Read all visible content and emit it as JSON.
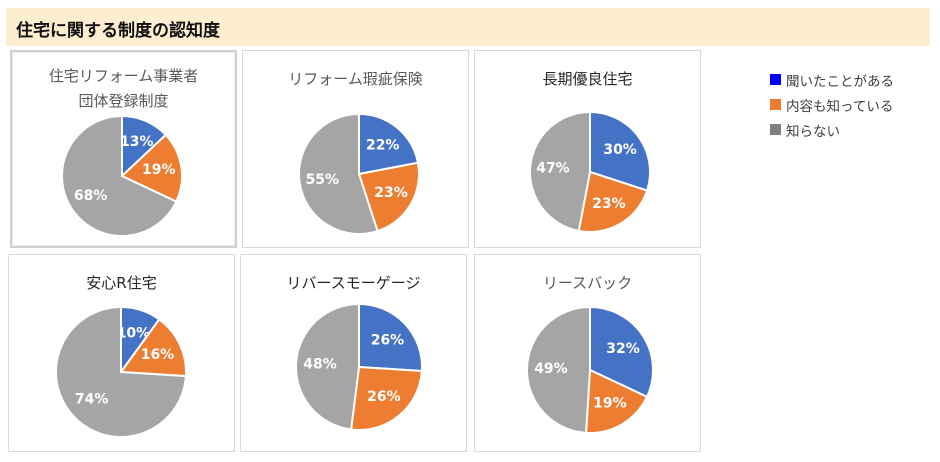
{
  "page": {
    "title": "住宅に関する制度の認知度"
  },
  "legend": [
    {
      "label": "聞いたことがある",
      "color": "#0000ff"
    },
    {
      "label": "内容も知っている",
      "color": "#ed7d31"
    },
    {
      "label": "知らない",
      "color": "#808080"
    }
  ],
  "chart_data": [
    {
      "type": "pie",
      "title_lines": [
        "住宅リフォーム事業者",
        "団体登録制度"
      ],
      "categories": [
        "聞いたことがある",
        "内容も知っている",
        "知らない"
      ],
      "values": [
        13,
        19,
        68
      ],
      "labels": [
        "13%",
        "19%",
        "68%"
      ],
      "colors": [
        "#4472c4",
        "#ed7d31",
        "#a5a5a5"
      ]
    },
    {
      "type": "pie",
      "title_lines": [
        "リフォーム瑕疵保険"
      ],
      "categories": [
        "聞いたことがある",
        "内容も知っている",
        "知らない"
      ],
      "values": [
        22,
        23,
        55
      ],
      "labels": [
        "22%",
        "23%",
        "55%"
      ],
      "colors": [
        "#4472c4",
        "#ed7d31",
        "#a5a5a5"
      ]
    },
    {
      "type": "pie",
      "title_lines": [
        "長期優良住宅"
      ],
      "categories": [
        "聞いたことがある",
        "内容も知っている",
        "知らない"
      ],
      "values": [
        30,
        23,
        47
      ],
      "labels": [
        "30%",
        "23%",
        "47%"
      ],
      "colors": [
        "#4472c4",
        "#ed7d31",
        "#a5a5a5"
      ]
    },
    {
      "type": "pie",
      "title_lines": [
        "安心R住宅"
      ],
      "categories": [
        "聞いたことがある",
        "内容も知っている",
        "知らない"
      ],
      "values": [
        10,
        16,
        74
      ],
      "labels": [
        "10%",
        "16%",
        "74%"
      ],
      "colors": [
        "#4472c4",
        "#ed7d31",
        "#a5a5a5"
      ]
    },
    {
      "type": "pie",
      "title_lines": [
        "リバースモーゲージ"
      ],
      "categories": [
        "聞いたことがある",
        "内容も知っている",
        "知らない"
      ],
      "values": [
        26,
        26,
        48
      ],
      "labels": [
        "26%",
        "26%",
        "48%"
      ],
      "colors": [
        "#4472c4",
        "#ed7d31",
        "#a5a5a5"
      ]
    },
    {
      "type": "pie",
      "title_lines": [
        "リースバック"
      ],
      "categories": [
        "聞いたことがある",
        "内容も知っている",
        "知らない"
      ],
      "values": [
        32,
        19,
        49
      ],
      "labels": [
        "32%",
        "19%",
        "49%"
      ],
      "colors": [
        "#4472c4",
        "#ed7d31",
        "#a5a5a5"
      ]
    }
  ]
}
